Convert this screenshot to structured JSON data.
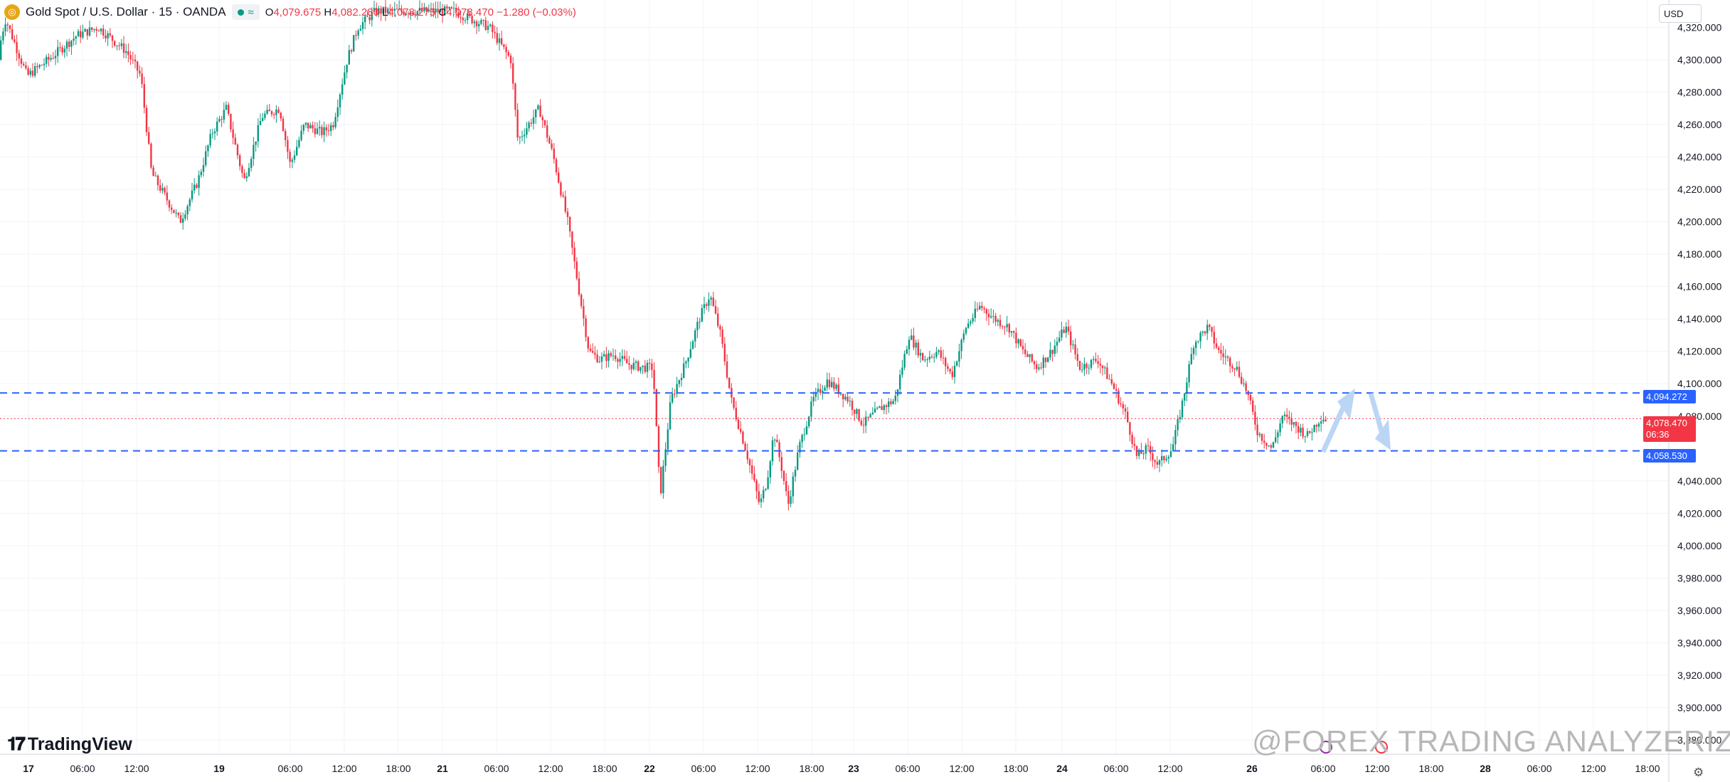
{
  "header": {
    "symbol_title": "Gold Spot / U.S. Dollar · 15 · OANDA",
    "symbol_icon": "gold-coin-icon",
    "status_icon": "wave-icon",
    "ohlc": {
      "open_key": "O",
      "open": "4,079.675",
      "high_key": "H",
      "high": "4,082.280",
      "low_key": "L",
      "low": "4,078.275",
      "close_key": "C",
      "close": "4,078.470",
      "change": "−1.280 (−0.03%)"
    }
  },
  "currency_button": "USD",
  "price_labels": {
    "resistance": "4,094.272",
    "current": "4,078.470",
    "countdown": "06:36",
    "support": "4,058.530"
  },
  "branding": {
    "logo_text": "TradingView"
  },
  "watermark": "@FOREX TRADING ANALYZERIZI",
  "colors": {
    "up": "#089981",
    "down": "#f23645",
    "level_line": "#2962ff",
    "support_bg": "#2962ff",
    "current_bg": "#f23645",
    "arrow": "#bbd6f5"
  },
  "chart_data": {
    "type": "candlestick",
    "symbol": "Gold Spot / U.S. Dollar",
    "interval": "15",
    "ylim": [
      3875,
      4330
    ],
    "y_ticks": [
      4320,
      4300,
      4280,
      4260,
      4240,
      4220,
      4200,
      4180,
      4160,
      4140,
      4120,
      4100,
      4080,
      4040,
      4020,
      4000,
      3980,
      3960,
      3940,
      3920,
      3900,
      3880
    ],
    "y_tick_labels": [
      "4,320.000",
      "4,300.000",
      "4,280.000",
      "4,260.000",
      "4,240.000",
      "4,220.000",
      "4,200.000",
      "4,180.000",
      "4,160.000",
      "4,140.000",
      "4,120.000",
      "4,100.000",
      "4,080.000",
      "4,040.000",
      "4,020.000",
      "4,000.000",
      "3,980.000",
      "3,960.000",
      "3,940.000",
      "3,920.000",
      "3,900.000",
      "3,880.000"
    ],
    "x_ticks": [
      "17",
      "06:00",
      "12:00",
      "19",
      "06:00",
      "12:00",
      "18:00",
      "21",
      "06:00",
      "12:00",
      "18:00",
      "22",
      "06:00",
      "12:00",
      "18:00",
      "23",
      "06:00",
      "12:00",
      "18:00",
      "24",
      "06:00",
      "12:00",
      "26",
      "06:00",
      "12:00",
      "18:00",
      "28",
      "06:00",
      "12:00",
      "18:00"
    ],
    "key_points": [
      [
        0,
        4300
      ],
      [
        4,
        4315
      ],
      [
        10,
        4325
      ],
      [
        40,
        4290
      ],
      [
        70,
        4300
      ],
      [
        110,
        4315
      ],
      [
        140,
        4320
      ],
      [
        180,
        4305
      ],
      [
        200,
        4290
      ],
      [
        215,
        4230
      ],
      [
        235,
        4215
      ],
      [
        255,
        4200
      ],
      [
        280,
        4225
      ],
      [
        300,
        4255
      ],
      [
        320,
        4270
      ],
      [
        345,
        4225
      ],
      [
        370,
        4265
      ],
      [
        395,
        4270
      ],
      [
        410,
        4235
      ],
      [
        430,
        4260
      ],
      [
        455,
        4255
      ],
      [
        470,
        4260
      ],
      [
        490,
        4300
      ],
      [
        505,
        4320
      ],
      [
        530,
        4330
      ],
      [
        640,
        4330
      ],
      [
        690,
        4320
      ],
      [
        720,
        4300
      ],
      [
        730,
        4250
      ],
      [
        760,
        4270
      ],
      [
        780,
        4240
      ],
      [
        800,
        4200
      ],
      [
        815,
        4160
      ],
      [
        830,
        4120
      ],
      [
        845,
        4115
      ],
      [
        865,
        4118
      ],
      [
        885,
        4112
      ],
      [
        905,
        4110
      ],
      [
        920,
        4110
      ],
      [
        930,
        4030
      ],
      [
        945,
        4090
      ],
      [
        965,
        4112
      ],
      [
        985,
        4140
      ],
      [
        1000,
        4155
      ],
      [
        1015,
        4130
      ],
      [
        1030,
        4090
      ],
      [
        1050,
        4060
      ],
      [
        1070,
        4025
      ],
      [
        1080,
        4040
      ],
      [
        1090,
        4070
      ],
      [
        1100,
        4050
      ],
      [
        1110,
        4025
      ],
      [
        1125,
        4060
      ],
      [
        1145,
        4090
      ],
      [
        1165,
        4102
      ],
      [
        1195,
        4090
      ],
      [
        1215,
        4075
      ],
      [
        1240,
        4085
      ],
      [
        1260,
        4090
      ],
      [
        1280,
        4130
      ],
      [
        1300,
        4115
      ],
      [
        1320,
        4120
      ],
      [
        1340,
        4105
      ],
      [
        1360,
        4135
      ],
      [
        1380,
        4148
      ],
      [
        1400,
        4140
      ],
      [
        1420,
        4135
      ],
      [
        1440,
        4120
      ],
      [
        1460,
        4110
      ],
      [
        1480,
        4120
      ],
      [
        1500,
        4135
      ],
      [
        1520,
        4110
      ],
      [
        1545,
        4115
      ],
      [
        1565,
        4100
      ],
      [
        1585,
        4080
      ],
      [
        1600,
        4055
      ],
      [
        1615,
        4060
      ],
      [
        1630,
        4050
      ],
      [
        1650,
        4060
      ],
      [
        1665,
        4090
      ],
      [
        1680,
        4125
      ],
      [
        1700,
        4135
      ],
      [
        1715,
        4120
      ],
      [
        1740,
        4110
      ],
      [
        1755,
        4095
      ],
      [
        1770,
        4070
      ],
      [
        1790,
        4060
      ],
      [
        1805,
        4080
      ],
      [
        1820,
        4075
      ],
      [
        1840,
        4068
      ],
      [
        1860,
        4080
      ],
      [
        1865,
        4078
      ]
    ],
    "horizontal_levels": [
      {
        "price": 4094.272,
        "style": "dashed",
        "color": "#2962ff",
        "label": "4,094.272"
      },
      {
        "price": 4058.53,
        "style": "dashed",
        "color": "#2962ff",
        "label": "4,058.530"
      },
      {
        "price": 4078.47,
        "style": "dotted",
        "color": "#f23645",
        "label": "4,078.470"
      }
    ],
    "annotations": [
      {
        "type": "arrow",
        "direction": "up",
        "from_price": 4058,
        "to_price": 4090
      },
      {
        "type": "arrow",
        "direction": "down",
        "from_price": 4094,
        "to_price": 4062
      }
    ],
    "grid": true
  }
}
